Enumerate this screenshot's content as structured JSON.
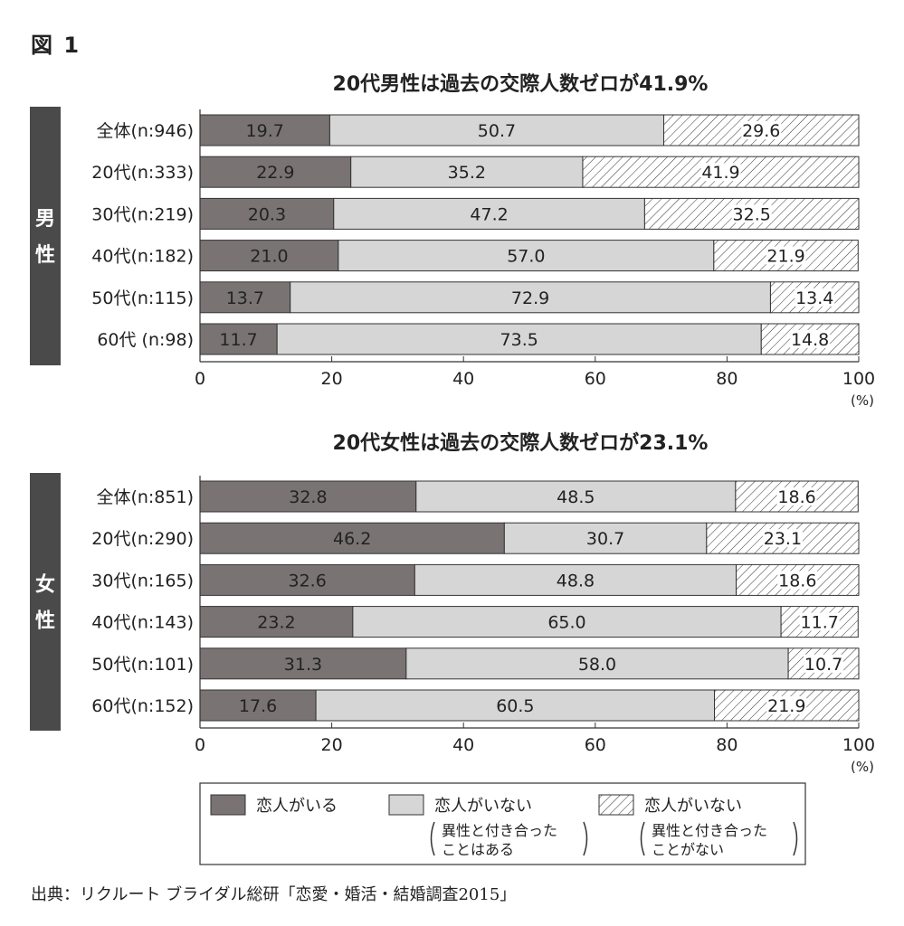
{
  "figure_label": "図 1",
  "source": "出典：リクルート ブライダル総研「恋愛・婚活・結婚調査2015」",
  "colors": {
    "has_partner": "#7a7373",
    "no_partner_experienced": "#d6d6d6",
    "no_partner_never": "hatch",
    "side_bar": "#4a4a4a"
  },
  "legend": {
    "items": [
      {
        "label": "恋人がいる"
      },
      {
        "label": "恋人がいない",
        "sub1": "異性と付き合った",
        "sub2": "ことはある"
      },
      {
        "label": "恋人がいない",
        "sub1": "異性と付き合った",
        "sub2": "ことがない"
      }
    ]
  },
  "chart_data": [
    {
      "type": "bar",
      "orientation": "horizontal-stacked",
      "title": "20代男性は過去の交際人数ゼロが41.9%",
      "group_label": "男性",
      "categories": [
        "全体(n:946)",
        "20代(n:333)",
        "30代(n:219)",
        "40代(n:182)",
        "50代(n:115)",
        "60代 (n:98)"
      ],
      "series": [
        {
          "values": [
            19.7,
            22.9,
            20.3,
            21.0,
            13.7,
            11.7
          ]
        },
        {
          "values": [
            50.7,
            35.2,
            47.2,
            57.0,
            72.9,
            73.5
          ]
        },
        {
          "values": [
            29.6,
            41.9,
            32.5,
            21.9,
            13.4,
            14.8
          ]
        }
      ],
      "labels": [
        [
          "19.7",
          "50.7",
          "29.6"
        ],
        [
          "22.9",
          "35.2",
          "41.9"
        ],
        [
          "20.3",
          "47.2",
          "32.5"
        ],
        [
          "21.0",
          "57.0",
          "21.9"
        ],
        [
          "13.7",
          "72.9",
          "13.4"
        ],
        [
          "11.7",
          "73.5",
          "14.8"
        ]
      ],
      "xlim": [
        0,
        100
      ],
      "xticks": [
        "0",
        "20",
        "40",
        "60",
        "80",
        "100"
      ],
      "xunit": "(%)"
    },
    {
      "type": "bar",
      "orientation": "horizontal-stacked",
      "title": "20代女性は過去の交際人数ゼロが23.1%",
      "group_label": "女性",
      "categories": [
        "全体(n:851)",
        "20代(n:290)",
        "30代(n:165)",
        "40代(n:143)",
        "50代(n:101)",
        "60代(n:152)"
      ],
      "series": [
        {
          "values": [
            32.8,
            46.2,
            32.6,
            23.2,
            31.3,
            17.6
          ]
        },
        {
          "values": [
            48.5,
            30.7,
            48.8,
            65.0,
            58.0,
            60.5
          ]
        },
        {
          "values": [
            18.6,
            23.1,
            18.6,
            11.7,
            10.7,
            21.9
          ]
        }
      ],
      "labels": [
        [
          "32.8",
          "48.5",
          "18.6"
        ],
        [
          "46.2",
          "30.7",
          "23.1"
        ],
        [
          "32.6",
          "48.8",
          "18.6"
        ],
        [
          "23.2",
          "65.0",
          "11.7"
        ],
        [
          "31.3",
          "58.0",
          "10.7"
        ],
        [
          "17.6",
          "60.5",
          "21.9"
        ]
      ],
      "xlim": [
        0,
        100
      ],
      "xticks": [
        "0",
        "20",
        "40",
        "60",
        "80",
        "100"
      ],
      "xunit": "(%)"
    }
  ]
}
